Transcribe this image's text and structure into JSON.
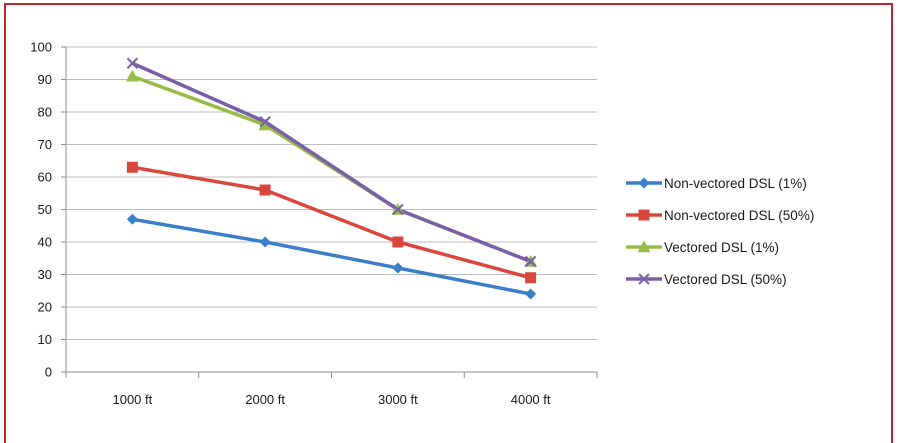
{
  "chart_data": {
    "type": "line",
    "title": "",
    "xlabel": "",
    "ylabel": "",
    "categories": [
      "1000 ft",
      "2000 ft",
      "3000 ft",
      "4000 ft"
    ],
    "ylim": [
      0,
      100
    ],
    "yticks": [
      0,
      10,
      20,
      30,
      40,
      50,
      60,
      70,
      80,
      90,
      100
    ],
    "grid": "horizontal",
    "legend_position": "right",
    "series": [
      {
        "name": "Non-vectored DSL (1%)",
        "values": [
          47,
          40,
          32,
          24
        ],
        "color": "#3a7dc9",
        "marker": "diamond"
      },
      {
        "name": "Non-vectored DSL (50%)",
        "values": [
          63,
          56,
          40,
          29
        ],
        "color": "#d9463c",
        "marker": "square"
      },
      {
        "name": "Vectored DSL (1%)",
        "values": [
          91,
          76,
          50,
          34
        ],
        "color": "#95bd45",
        "marker": "triangle"
      },
      {
        "name": "Vectored DSL (50%)",
        "values": [
          95,
          77,
          50,
          34
        ],
        "color": "#7a5fa7",
        "marker": "x"
      }
    ]
  },
  "frame_color": "#c0282d"
}
